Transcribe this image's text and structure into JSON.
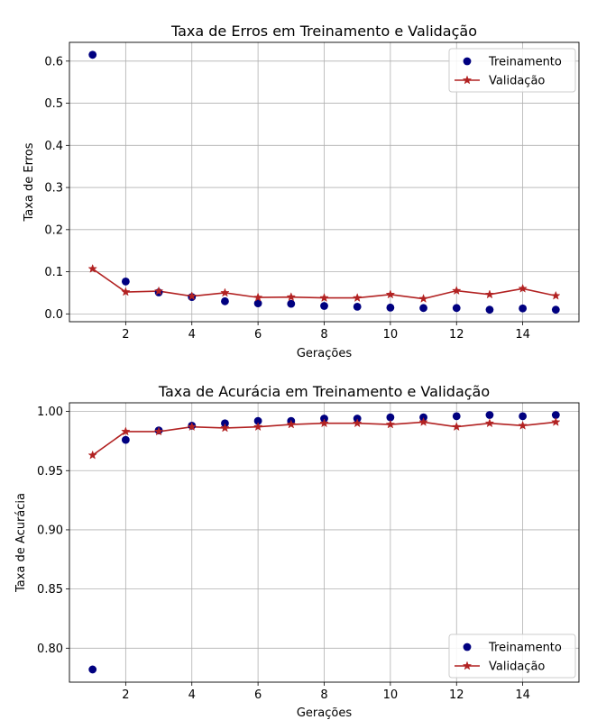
{
  "chart_data": [
    {
      "type": "line",
      "title": "Taxa de Erros em Treinamento e Validação",
      "xlabel": "Gerações",
      "ylabel": "Taxa de Erros",
      "xlim": [
        0.3,
        15.7
      ],
      "ylim": [
        -0.0185,
        0.6445
      ],
      "xticks": [
        2,
        4,
        6,
        8,
        10,
        12,
        14
      ],
      "yticks": [
        0.0,
        0.1,
        0.2,
        0.3,
        0.4,
        0.5,
        0.6
      ],
      "ytick_labels": [
        "0.0",
        "0.1",
        "0.2",
        "0.3",
        "0.4",
        "0.5",
        "0.6"
      ],
      "grid": true,
      "legend_position": "top-right",
      "x": [
        1,
        2,
        3,
        4,
        5,
        6,
        7,
        8,
        9,
        10,
        11,
        12,
        13,
        14,
        15
      ],
      "series": [
        {
          "name": "Treinamento",
          "style": "scatter",
          "color": "#000080",
          "values": [
            0.615,
            0.077,
            0.051,
            0.04,
            0.03,
            0.025,
            0.024,
            0.019,
            0.017,
            0.015,
            0.014,
            0.014,
            0.01,
            0.013,
            0.01
          ]
        },
        {
          "name": "Validação",
          "style": "line-star",
          "color": "#B22222",
          "values": [
            0.107,
            0.052,
            0.054,
            0.042,
            0.05,
            0.039,
            0.04,
            0.038,
            0.038,
            0.046,
            0.036,
            0.055,
            0.046,
            0.06,
            0.043
          ]
        }
      ]
    },
    {
      "type": "line",
      "title": "Taxa de Acurácia em Treinamento e Validação",
      "xlabel": "Gerações",
      "ylabel": "Taxa de Acurácia",
      "xlim": [
        0.3,
        15.7
      ],
      "ylim": [
        0.7713,
        1.0073
      ],
      "xticks": [
        2,
        4,
        6,
        8,
        10,
        12,
        14
      ],
      "yticks": [
        0.8,
        0.85,
        0.9,
        0.95,
        1.0
      ],
      "ytick_labels": [
        "0.80",
        "0.85",
        "0.90",
        "0.95",
        "1.00"
      ],
      "grid": true,
      "legend_position": "bottom-right",
      "x": [
        1,
        2,
        3,
        4,
        5,
        6,
        7,
        8,
        9,
        10,
        11,
        12,
        13,
        14,
        15
      ],
      "series": [
        {
          "name": "Treinamento",
          "style": "scatter",
          "color": "#000080",
          "values": [
            0.782,
            0.976,
            0.984,
            0.988,
            0.99,
            0.992,
            0.992,
            0.994,
            0.994,
            0.995,
            0.995,
            0.996,
            0.997,
            0.996,
            0.997
          ]
        },
        {
          "name": "Validação",
          "style": "line-star",
          "color": "#B22222",
          "values": [
            0.963,
            0.983,
            0.983,
            0.987,
            0.986,
            0.987,
            0.989,
            0.99,
            0.99,
            0.989,
            0.991,
            0.987,
            0.99,
            0.988,
            0.991
          ]
        }
      ]
    }
  ]
}
